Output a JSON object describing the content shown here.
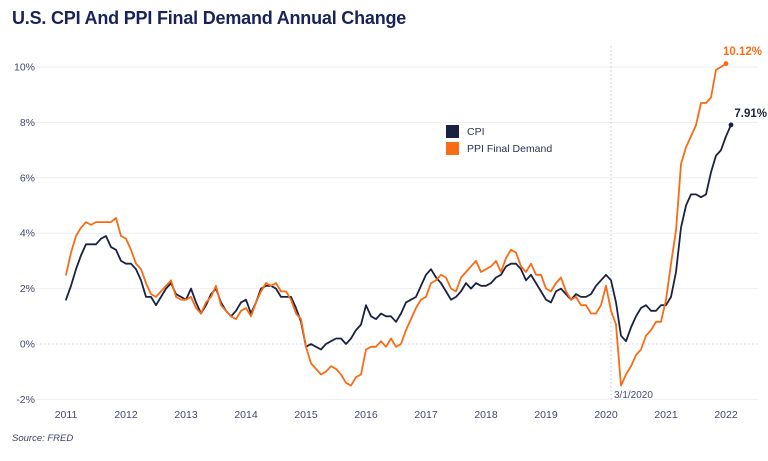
{
  "header": {
    "title": "U.S. CPI And PPI Final Demand Annual Change"
  },
  "footer": {
    "source": "Source: FRED"
  },
  "colors": {
    "cpi": "#1b2140",
    "ppi": "#f76c15",
    "title": "#19235a",
    "tick_label": "#42486c",
    "grid": "#ededf2",
    "zero_line": "#d7d7df",
    "event_line": "#c3c3cc"
  },
  "legend": {
    "items": [
      {
        "label": "CPI",
        "color": "#1b2140"
      },
      {
        "label": "PPI Final Demand",
        "color": "#f76c15"
      }
    ]
  },
  "annotations": {
    "ppi_end_label": "10.12%",
    "cpi_end_label": "7.91%",
    "event_date_label": "3/1/2020"
  },
  "chart_data": {
    "type": "line",
    "title": "U.S. CPI And PPI Final Demand Annual Change",
    "xlabel": "",
    "ylabel": "",
    "frequency": "monthly",
    "start_month": "2011-01",
    "end_month": "2022-02",
    "x_tick_labels": [
      "2011",
      "2012",
      "2013",
      "2014",
      "2015",
      "2016",
      "2017",
      "2018",
      "2019",
      "2020",
      "2021",
      "2022"
    ],
    "y_ticks": [
      -2,
      0,
      2,
      4,
      6,
      8,
      10
    ],
    "y_tick_labels": [
      "-2%",
      "0%",
      "2%",
      "4%",
      "6%",
      "8%",
      "10%"
    ],
    "ylim": [
      -2.1,
      10.8
    ],
    "grid": true,
    "zero_line_style": "dotted",
    "event_line_month": "2020-03",
    "legend_position": "center",
    "series": [
      {
        "name": "CPI",
        "color": "#1b2140",
        "end_label": "7.91%",
        "values": [
          1.6,
          2.1,
          2.7,
          3.2,
          3.6,
          3.6,
          3.6,
          3.8,
          3.9,
          3.5,
          3.4,
          3.0,
          2.9,
          2.9,
          2.7,
          2.3,
          1.7,
          1.7,
          1.4,
          1.7,
          2.0,
          2.2,
          1.8,
          1.7,
          1.6,
          2.0,
          1.5,
          1.1,
          1.4,
          1.8,
          2.0,
          1.5,
          1.2,
          1.0,
          1.2,
          1.5,
          1.6,
          1.1,
          1.5,
          2.0,
          2.1,
          2.1,
          2.0,
          1.7,
          1.7,
          1.7,
          1.3,
          0.8,
          -0.1,
          0.0,
          -0.1,
          -0.2,
          0.0,
          0.1,
          0.2,
          0.2,
          0.0,
          0.2,
          0.5,
          0.7,
          1.4,
          1.0,
          0.9,
          1.1,
          1.0,
          1.0,
          0.8,
          1.1,
          1.5,
          1.6,
          1.7,
          2.1,
          2.5,
          2.7,
          2.4,
          2.2,
          1.9,
          1.6,
          1.7,
          1.9,
          2.2,
          2.0,
          2.2,
          2.1,
          2.1,
          2.2,
          2.4,
          2.5,
          2.8,
          2.9,
          2.9,
          2.7,
          2.3,
          2.5,
          2.2,
          1.9,
          1.6,
          1.5,
          1.9,
          2.0,
          1.8,
          1.6,
          1.8,
          1.7,
          1.7,
          1.8,
          2.1,
          2.3,
          2.5,
          2.3,
          1.5,
          0.3,
          0.1,
          0.6,
          1.0,
          1.3,
          1.4,
          1.2,
          1.2,
          1.4,
          1.4,
          1.7,
          2.6,
          4.2,
          5.0,
          5.4,
          5.4,
          5.3,
          5.4,
          6.2,
          6.8,
          7.0,
          7.5,
          7.91
        ]
      },
      {
        "name": "PPI Final Demand",
        "color": "#f76c15",
        "end_label": "10.12%",
        "values": [
          2.5,
          3.3,
          3.9,
          4.2,
          4.4,
          4.3,
          4.4,
          4.4,
          4.4,
          4.4,
          4.55,
          3.9,
          3.8,
          3.4,
          2.9,
          2.7,
          2.2,
          1.8,
          1.7,
          1.9,
          2.1,
          2.3,
          1.7,
          1.6,
          1.6,
          1.7,
          1.3,
          1.1,
          1.5,
          1.7,
          2.1,
          1.4,
          1.2,
          1.0,
          0.9,
          1.2,
          1.3,
          1.0,
          1.5,
          1.9,
          2.2,
          2.1,
          2.2,
          1.9,
          1.9,
          1.6,
          1.1,
          0.9,
          -0.1,
          -0.7,
          -0.9,
          -1.1,
          -1.0,
          -0.8,
          -0.9,
          -1.1,
          -1.4,
          -1.5,
          -1.2,
          -1.1,
          -0.2,
          -0.1,
          -0.1,
          0.1,
          -0.1,
          0.2,
          -0.1,
          0.0,
          0.5,
          0.9,
          1.3,
          1.6,
          1.7,
          2.2,
          2.3,
          2.5,
          2.4,
          2.0,
          1.9,
          2.4,
          2.6,
          2.8,
          3.0,
          2.6,
          2.7,
          2.8,
          3.0,
          2.6,
          3.1,
          3.4,
          3.3,
          2.8,
          2.6,
          2.9,
          2.5,
          2.5,
          2.0,
          1.9,
          2.2,
          2.4,
          1.9,
          1.6,
          1.7,
          1.4,
          1.4,
          1.1,
          1.1,
          1.4,
          2.1,
          1.2,
          0.7,
          -1.5,
          -1.1,
          -0.8,
          -0.4,
          -0.2,
          0.3,
          0.5,
          0.8,
          0.8,
          1.6,
          2.9,
          4.1,
          6.5,
          7.1,
          7.5,
          7.9,
          8.7,
          8.7,
          8.9,
          9.9,
          10.0,
          10.12,
          null
        ]
      }
    ]
  }
}
